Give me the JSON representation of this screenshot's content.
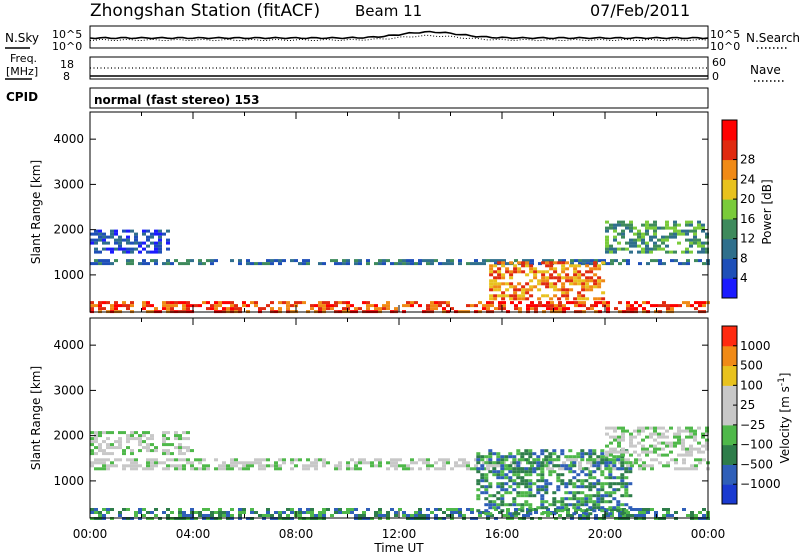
{
  "header": {
    "station": "Zhongshan Station (fitACF)",
    "beam": "Beam 11",
    "date": "07/Feb/2011"
  },
  "noise_panel": {
    "left_label": "N.Sky",
    "right_label": "N.Search",
    "y_ticks": [
      "10^5",
      "10^0"
    ]
  },
  "freq_panel": {
    "left_label_1": "Freq.",
    "left_label_2": "[MHz]",
    "left_ticks": [
      "18",
      "8"
    ],
    "right_label": "Nave",
    "right_ticks": [
      "60",
      "0"
    ],
    "cpid_label": "CPID",
    "mode_text": "normal (fast stereo) 153"
  },
  "chart_data": [
    {
      "type": "heatmap",
      "quantity": "Power",
      "ylabel": "Slant Range [km]",
      "xlabel": "Time UT",
      "x_ticks": [
        "00:00",
        "04:00",
        "08:00",
        "12:00",
        "16:00",
        "20:00",
        "00:00"
      ],
      "xlim_hours": [
        0,
        24
      ],
      "ylim_km": [
        180,
        4600
      ],
      "y_ticks": [
        1000,
        2000,
        3000,
        4000
      ],
      "colorbar": {
        "label": "Power [dB]",
        "ticks": [
          "4",
          "8",
          "12",
          "16",
          "20",
          "24",
          "28"
        ],
        "colors": [
          "#1b1bff",
          "#1e4fb8",
          "#2f6f8c",
          "#3e8a5c",
          "#7acb3a",
          "#e8c21e",
          "#f08a16",
          "#e02a10",
          "#ff0000"
        ]
      },
      "features": [
        {
          "name": "near-range band",
          "t_start": 0.0,
          "t_end": 24.0,
          "r_low": 200,
          "r_high": 420,
          "level": 7
        },
        {
          "name": "mid band",
          "t_start": 0.0,
          "t_end": 24.0,
          "r_low": 1250,
          "r_high": 1350,
          "level": 2
        },
        {
          "name": "upper band",
          "t_start": 0.0,
          "t_end": 3.0,
          "r_low": 1500,
          "r_high": 2000,
          "level": 1
        },
        {
          "name": "afternoon echoes",
          "t_start": 15.5,
          "t_end": 20.0,
          "r_low": 500,
          "r_high": 1300,
          "level": 6
        },
        {
          "name": "evening band",
          "t_start": 20.0,
          "t_end": 24.0,
          "r_low": 1500,
          "r_high": 2200,
          "level": 3
        }
      ]
    },
    {
      "type": "heatmap",
      "quantity": "Velocity",
      "ylabel": "Slant Range [km]",
      "xlabel": "Time UT",
      "x_ticks": [
        "00:00",
        "04:00",
        "08:00",
        "12:00",
        "16:00",
        "20:00",
        "00:00"
      ],
      "xlim_hours": [
        0,
        24
      ],
      "ylim_km": [
        180,
        4600
      ],
      "y_ticks": [
        1000,
        2000,
        3000,
        4000
      ],
      "colorbar": {
        "label_main": "Velocity",
        "label_unit": "[m s",
        "label_exp": "-1",
        "label_close": "]",
        "ticks": [
          "1000",
          "500",
          "100",
          "25",
          "−25",
          "−100",
          "−500",
          "−1000"
        ],
        "colors": [
          "#1a3ad0",
          "#2f5fb8",
          "#2e7d4a",
          "#4fb84a",
          "#c8c8c8",
          "#c8c8c8",
          "#e8c21e",
          "#f08a16",
          "#ff2a10"
        ]
      },
      "features": [
        {
          "name": "near-range band",
          "t_start": 0.0,
          "t_end": 24.0,
          "r_low": 200,
          "r_high": 400,
          "level": 2
        },
        {
          "name": "ground scatter band",
          "t_start": 0.0,
          "t_end": 24.0,
          "r_low": 1300,
          "r_high": 1500,
          "level": 4
        },
        {
          "name": "upper band",
          "t_start": 0.0,
          "t_end": 4.0,
          "r_low": 1600,
          "r_high": 2100,
          "level": 4
        },
        {
          "name": "afternoon flow",
          "t_start": 15.0,
          "t_end": 21.0,
          "r_low": 300,
          "r_high": 1700,
          "level": 2
        },
        {
          "name": "evening band",
          "t_start": 20.0,
          "t_end": 24.0,
          "r_low": 1600,
          "r_high": 2200,
          "level": 4
        }
      ]
    }
  ]
}
